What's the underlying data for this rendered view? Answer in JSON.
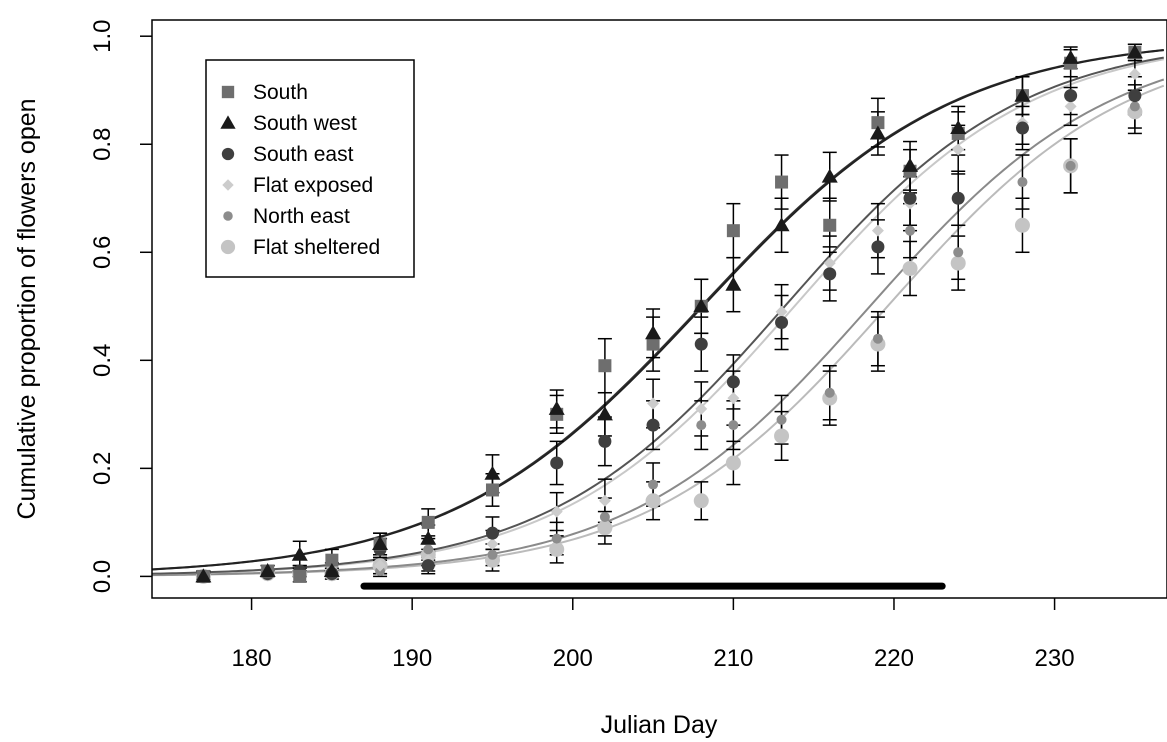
{
  "chart_data": {
    "type": "scatter",
    "title": "",
    "xlabel": "Julian Day",
    "ylabel": "Cumulative proportion of flowers open",
    "xlim": [
      173.8,
      237.0
    ],
    "ylim": [
      -0.04,
      1.03
    ],
    "x_ticks": [
      180,
      190,
      200,
      210,
      220,
      230
    ],
    "y_ticks": [
      0.0,
      0.2,
      0.4,
      0.6,
      0.8,
      1.0
    ],
    "x_tick_labels": [
      "180",
      "190",
      "200",
      "210",
      "220",
      "230"
    ],
    "y_tick_labels": [
      "0.0",
      "0.2",
      "0.4",
      "0.6",
      "0.8",
      "1.0"
    ],
    "grid": false,
    "legend_position": "top-left",
    "x": [
      177,
      181,
      183,
      185,
      188,
      191,
      195,
      199,
      202,
      205,
      208,
      210,
      213,
      216,
      219,
      221,
      224,
      228,
      231,
      235
    ],
    "series": [
      {
        "name": "South",
        "marker": "square",
        "color": "#6e6e6e",
        "values": [
          0.0,
          0.01,
          0.0,
          0.03,
          0.06,
          0.1,
          0.16,
          0.3,
          0.39,
          0.43,
          0.5,
          0.64,
          0.73,
          0.65,
          0.84,
          0.75,
          0.82,
          0.89,
          0.95,
          0.97
        ],
        "errors": [
          0.01,
          0.01,
          0.01,
          0.02,
          0.02,
          0.025,
          0.03,
          0.035,
          0.05,
          0.05,
          0.05,
          0.05,
          0.05,
          0.05,
          0.045,
          0.04,
          0.04,
          0.035,
          0.025,
          0.015
        ],
        "curve": {
          "midpoint": 208.0,
          "scale": 7.9,
          "color": "#333333"
        }
      },
      {
        "name": "South west",
        "marker": "triangle",
        "color": "#1a1a1a",
        "values": [
          0.0,
          0.01,
          0.04,
          0.01,
          0.06,
          0.07,
          0.19,
          0.31,
          0.3,
          0.45,
          0.5,
          0.54,
          0.65,
          0.74,
          0.82,
          0.76,
          0.83,
          0.89,
          0.96,
          0.97
        ],
        "errors": [
          0.01,
          0.01,
          0.025,
          0.015,
          0.02,
          0.025,
          0.035,
          0.035,
          0.04,
          0.045,
          0.05,
          0.05,
          0.05,
          0.045,
          0.04,
          0.045,
          0.04,
          0.035,
          0.02,
          0.015
        ],
        "curve": {
          "midpoint": 208.1,
          "scale": 7.9,
          "color": "#222222"
        }
      },
      {
        "name": "South east",
        "marker": "circle",
        "color": "#3f3f3f",
        "values": [
          0.0,
          0.005,
          0.01,
          0.005,
          0.05,
          0.02,
          0.08,
          0.21,
          0.25,
          0.28,
          0.43,
          0.36,
          0.47,
          0.56,
          0.61,
          0.7,
          0.7,
          0.83,
          0.89,
          0.89
        ],
        "errors": [
          0.005,
          0.005,
          0.01,
          0.005,
          0.02,
          0.015,
          0.03,
          0.04,
          0.045,
          0.045,
          0.05,
          0.05,
          0.05,
          0.05,
          0.05,
          0.05,
          0.05,
          0.04,
          0.035,
          0.035
        ],
        "curve": {
          "midpoint": 213.2,
          "scale": 7.4,
          "color": "#555555"
        }
      },
      {
        "name": "Flat exposed",
        "marker": "diamond",
        "color": "#cccccc",
        "values": [
          0.0,
          0.005,
          0.01,
          0.005,
          0.02,
          0.03,
          0.06,
          0.12,
          0.14,
          0.32,
          0.31,
          0.33,
          0.49,
          0.58,
          0.64,
          0.69,
          0.79,
          0.84,
          0.87,
          0.93
        ],
        "errors": [
          0.005,
          0.005,
          0.01,
          0.005,
          0.015,
          0.02,
          0.025,
          0.035,
          0.04,
          0.045,
          0.05,
          0.05,
          0.05,
          0.05,
          0.05,
          0.05,
          0.045,
          0.04,
          0.035,
          0.03
        ],
        "curve": {
          "midpoint": 213.8,
          "scale": 7.4,
          "color": "#c8c8c8"
        }
      },
      {
        "name": "North east",
        "marker": "circle-small",
        "color": "#8c8c8c",
        "values": [
          0.0,
          0.005,
          0.005,
          0.01,
          0.01,
          0.05,
          0.04,
          0.07,
          0.11,
          0.17,
          0.28,
          0.28,
          0.29,
          0.34,
          0.44,
          0.64,
          0.6,
          0.73,
          0.76,
          0.87
        ],
        "errors": [
          0.005,
          0.005,
          0.005,
          0.005,
          0.01,
          0.02,
          0.02,
          0.03,
          0.035,
          0.04,
          0.045,
          0.045,
          0.045,
          0.05,
          0.05,
          0.05,
          0.05,
          0.05,
          0.05,
          0.04
        ],
        "curve": {
          "midpoint": 218.5,
          "scale": 7.5,
          "color": "#8a8a8a"
        }
      },
      {
        "name": "Flat sheltered",
        "marker": "circle-large",
        "color": "#c4c4c4",
        "values": [
          0.0,
          0.005,
          0.005,
          0.005,
          0.02,
          0.04,
          0.03,
          0.05,
          0.09,
          0.14,
          0.14,
          0.21,
          0.26,
          0.33,
          0.43,
          0.57,
          0.58,
          0.65,
          0.76,
          0.86
        ],
        "errors": [
          0.005,
          0.005,
          0.005,
          0.005,
          0.015,
          0.02,
          0.02,
          0.025,
          0.03,
          0.035,
          0.035,
          0.04,
          0.045,
          0.05,
          0.05,
          0.05,
          0.05,
          0.05,
          0.05,
          0.04
        ],
        "curve": {
          "midpoint": 219.6,
          "scale": 7.5,
          "color": "#bbbbbb"
        }
      }
    ],
    "annotations": [
      {
        "type": "horizontal-bar",
        "x_start": 187.0,
        "x_end": 223.0,
        "y": -0.018,
        "color": "#000000"
      }
    ]
  }
}
